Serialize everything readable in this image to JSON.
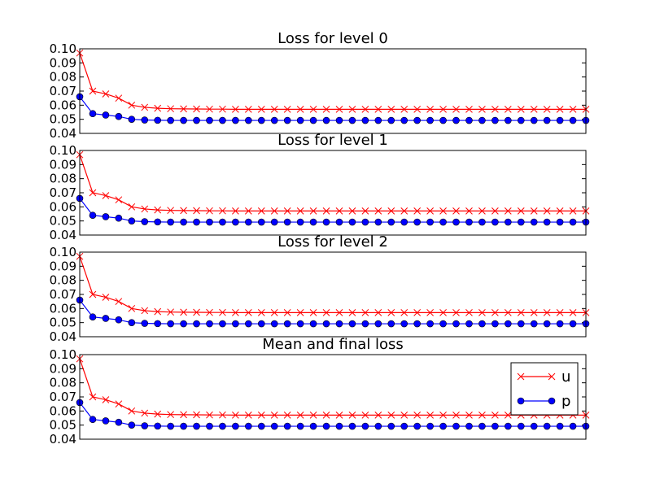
{
  "chart_data": [
    {
      "type": "line",
      "title": "Loss for level 0",
      "ylim": [
        0.04,
        0.1
      ],
      "yticks": [
        "0.10",
        "0.09",
        "0.08",
        "0.07",
        "0.06",
        "0.05",
        "0.04"
      ],
      "x": [
        0,
        1,
        2,
        3,
        4,
        5,
        6,
        7,
        8,
        9,
        10,
        11,
        12,
        13,
        14,
        15,
        16,
        17,
        18,
        19,
        20,
        21,
        22,
        23,
        24,
        25,
        26,
        27,
        28,
        29,
        30,
        31,
        32,
        33,
        34,
        35,
        36,
        37,
        38,
        39
      ],
      "series": [
        {
          "name": "u",
          "color": "#ff0000",
          "marker": "x",
          "values": [
            0.097,
            0.07,
            0.068,
            0.065,
            0.06,
            0.0585,
            0.0578,
            0.0575,
            0.0574,
            0.0573,
            0.0572,
            0.0572,
            0.0571,
            0.0571,
            0.0571,
            0.0571,
            0.0571,
            0.0571,
            0.0571,
            0.0571,
            0.0571,
            0.0571,
            0.0571,
            0.0571,
            0.0571,
            0.0571,
            0.0571,
            0.0571,
            0.0571,
            0.0571,
            0.0571,
            0.0571,
            0.0571,
            0.0571,
            0.0571,
            0.0571,
            0.0571,
            0.0571,
            0.0571,
            0.0571
          ]
        },
        {
          "name": "p",
          "color": "#0000ff",
          "marker": "o",
          "values": [
            0.066,
            0.054,
            0.053,
            0.052,
            0.05,
            0.0495,
            0.0493,
            0.0492,
            0.0492,
            0.0492,
            0.0492,
            0.0492,
            0.0492,
            0.0492,
            0.0492,
            0.0492,
            0.0492,
            0.0492,
            0.0492,
            0.0492,
            0.0492,
            0.0492,
            0.0492,
            0.0492,
            0.0492,
            0.0492,
            0.0492,
            0.0492,
            0.0492,
            0.0492,
            0.0492,
            0.0492,
            0.0492,
            0.0492,
            0.0492,
            0.0492,
            0.0492,
            0.0492,
            0.0492,
            0.0492
          ]
        }
      ]
    },
    {
      "type": "line",
      "title": "Loss for level 1",
      "ylim": [
        0.04,
        0.1
      ],
      "yticks": [
        "0.10",
        "0.09",
        "0.08",
        "0.07",
        "0.06",
        "0.05",
        "0.04"
      ],
      "x": [
        0,
        1,
        2,
        3,
        4,
        5,
        6,
        7,
        8,
        9,
        10,
        11,
        12,
        13,
        14,
        15,
        16,
        17,
        18,
        19,
        20,
        21,
        22,
        23,
        24,
        25,
        26,
        27,
        28,
        29,
        30,
        31,
        32,
        33,
        34,
        35,
        36,
        37,
        38,
        39
      ],
      "series": [
        {
          "name": "u",
          "color": "#ff0000",
          "marker": "x",
          "values": [
            0.097,
            0.07,
            0.068,
            0.065,
            0.06,
            0.0585,
            0.0578,
            0.0575,
            0.0574,
            0.0573,
            0.0572,
            0.0572,
            0.0571,
            0.0571,
            0.0571,
            0.0571,
            0.0571,
            0.0571,
            0.0571,
            0.0571,
            0.0571,
            0.0571,
            0.0571,
            0.0571,
            0.0571,
            0.0571,
            0.0571,
            0.0571,
            0.0571,
            0.0571,
            0.0571,
            0.0571,
            0.0571,
            0.0571,
            0.0571,
            0.0571,
            0.0571,
            0.0571,
            0.0571,
            0.0571
          ]
        },
        {
          "name": "p",
          "color": "#0000ff",
          "marker": "o",
          "values": [
            0.066,
            0.054,
            0.053,
            0.052,
            0.05,
            0.0495,
            0.0493,
            0.0492,
            0.0492,
            0.0492,
            0.0492,
            0.0492,
            0.0492,
            0.0492,
            0.0492,
            0.0492,
            0.0492,
            0.0492,
            0.0492,
            0.0492,
            0.0492,
            0.0492,
            0.0492,
            0.0492,
            0.0492,
            0.0492,
            0.0492,
            0.0492,
            0.0492,
            0.0492,
            0.0492,
            0.0492,
            0.0492,
            0.0492,
            0.0492,
            0.0492,
            0.0492,
            0.0492,
            0.0492,
            0.0492
          ]
        }
      ]
    },
    {
      "type": "line",
      "title": "Loss for level 2",
      "ylim": [
        0.04,
        0.1
      ],
      "yticks": [
        "0.10",
        "0.09",
        "0.08",
        "0.07",
        "0.06",
        "0.05",
        "0.04"
      ],
      "x": [
        0,
        1,
        2,
        3,
        4,
        5,
        6,
        7,
        8,
        9,
        10,
        11,
        12,
        13,
        14,
        15,
        16,
        17,
        18,
        19,
        20,
        21,
        22,
        23,
        24,
        25,
        26,
        27,
        28,
        29,
        30,
        31,
        32,
        33,
        34,
        35,
        36,
        37,
        38,
        39
      ],
      "series": [
        {
          "name": "u",
          "color": "#ff0000",
          "marker": "x",
          "values": [
            0.097,
            0.07,
            0.068,
            0.065,
            0.06,
            0.0585,
            0.0578,
            0.0575,
            0.0574,
            0.0573,
            0.0572,
            0.0572,
            0.0571,
            0.0571,
            0.0571,
            0.0571,
            0.0571,
            0.0571,
            0.0571,
            0.0571,
            0.0571,
            0.0571,
            0.0571,
            0.0571,
            0.0571,
            0.0571,
            0.0571,
            0.0571,
            0.0571,
            0.0571,
            0.0571,
            0.0571,
            0.0571,
            0.0571,
            0.0571,
            0.0571,
            0.0571,
            0.0571,
            0.0571,
            0.0571
          ]
        },
        {
          "name": "p",
          "color": "#0000ff",
          "marker": "o",
          "values": [
            0.066,
            0.054,
            0.053,
            0.052,
            0.05,
            0.0495,
            0.0493,
            0.0492,
            0.0492,
            0.0492,
            0.0492,
            0.0492,
            0.0492,
            0.0492,
            0.0492,
            0.0492,
            0.0492,
            0.0492,
            0.0492,
            0.0492,
            0.0492,
            0.0492,
            0.0492,
            0.0492,
            0.0492,
            0.0492,
            0.0492,
            0.0492,
            0.0492,
            0.0492,
            0.0492,
            0.0492,
            0.0492,
            0.0492,
            0.0492,
            0.0492,
            0.0492,
            0.0492,
            0.0492,
            0.0492
          ]
        }
      ]
    },
    {
      "type": "line",
      "title": "Mean and final loss",
      "ylim": [
        0.04,
        0.1
      ],
      "yticks": [
        "0.10",
        "0.09",
        "0.08",
        "0.07",
        "0.06",
        "0.05",
        "0.04"
      ],
      "legend": "upper right",
      "x": [
        0,
        1,
        2,
        3,
        4,
        5,
        6,
        7,
        8,
        9,
        10,
        11,
        12,
        13,
        14,
        15,
        16,
        17,
        18,
        19,
        20,
        21,
        22,
        23,
        24,
        25,
        26,
        27,
        28,
        29,
        30,
        31,
        32,
        33,
        34,
        35,
        36,
        37,
        38,
        39
      ],
      "series": [
        {
          "name": "u",
          "color": "#ff0000",
          "marker": "x",
          "values": [
            0.097,
            0.07,
            0.068,
            0.065,
            0.06,
            0.0585,
            0.0578,
            0.0575,
            0.0574,
            0.0573,
            0.0572,
            0.0572,
            0.0571,
            0.0571,
            0.0571,
            0.0571,
            0.0571,
            0.0571,
            0.0571,
            0.0571,
            0.0571,
            0.0571,
            0.0571,
            0.0571,
            0.0571,
            0.0571,
            0.0571,
            0.0571,
            0.0571,
            0.0571,
            0.0571,
            0.0571,
            0.0571,
            0.0571,
            0.0571,
            0.0571,
            0.0571,
            0.0571,
            0.0571,
            0.0571
          ]
        },
        {
          "name": "p",
          "color": "#0000ff",
          "marker": "o",
          "values": [
            0.066,
            0.054,
            0.053,
            0.052,
            0.05,
            0.0495,
            0.0493,
            0.0492,
            0.0492,
            0.0492,
            0.0492,
            0.0492,
            0.0492,
            0.0492,
            0.0492,
            0.0492,
            0.0492,
            0.0492,
            0.0492,
            0.0492,
            0.0492,
            0.0492,
            0.0492,
            0.0492,
            0.0492,
            0.0492,
            0.0492,
            0.0492,
            0.0492,
            0.0492,
            0.0492,
            0.0492,
            0.0492,
            0.0492,
            0.0492,
            0.0492,
            0.0492,
            0.0492,
            0.0492,
            0.0492
          ]
        }
      ]
    }
  ]
}
